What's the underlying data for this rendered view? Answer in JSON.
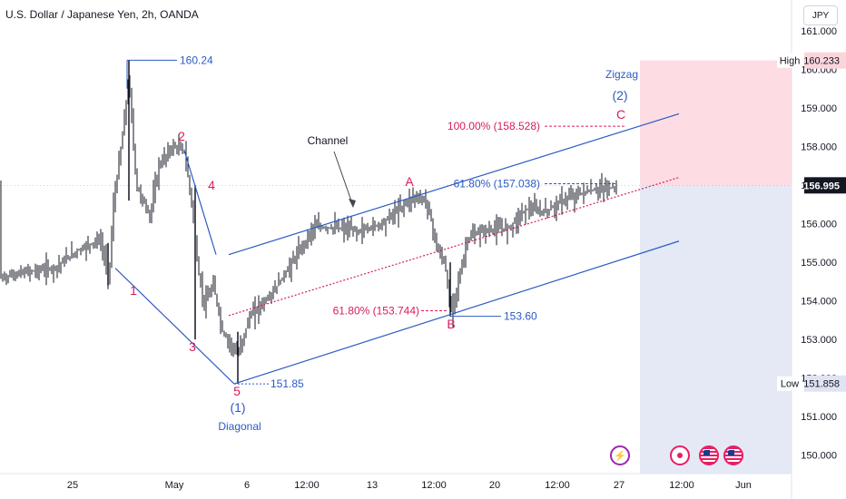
{
  "header": {
    "title": "U.S. Dollar / Japanese Yen, 2h, OANDA",
    "currency_button": "JPY"
  },
  "colors": {
    "blue": "#2c5bc4",
    "magenta": "#d81b60",
    "target_zone": "#fcd5dc",
    "stop_zone": "#dfe3f3",
    "candle": "#131722"
  },
  "events": [
    "lightning-icon",
    "economic-event-icon",
    "us-flag-icon",
    "us-flag-icon"
  ],
  "chart_data": {
    "type": "candlestick",
    "symbol": "USDJPY",
    "ylim": [
      149.5,
      161.4
    ],
    "x_tick_labels": [
      "25",
      "May",
      "6",
      "12:00",
      "13",
      "12:00",
      "20",
      "12:00",
      "27",
      "12:00",
      "Jun"
    ],
    "y_tick_labels": [
      "161.000",
      "160.000",
      "159.000",
      "158.000",
      "157.000",
      "156.000",
      "155.000",
      "154.000",
      "153.000",
      "152.000",
      "151.000",
      "150.000"
    ],
    "last_price": "156.995",
    "high_label": "High",
    "high_value": "160.233",
    "low_label": "Low",
    "low_value": "151.858",
    "price_path": [
      [
        0,
        154.6
      ],
      [
        30,
        154.75
      ],
      [
        60,
        154.85
      ],
      [
        85,
        155.3
      ],
      [
        110,
        155.6
      ],
      [
        120,
        154.6
      ],
      [
        125,
        156.5
      ],
      [
        135,
        158.3
      ],
      [
        142,
        159.8
      ],
      [
        150,
        157.0
      ],
      [
        165,
        156.2
      ],
      [
        175,
        157.5
      ],
      [
        190,
        158.0
      ],
      [
        203,
        157.9
      ],
      [
        213,
        156.2
      ],
      [
        218,
        154.8
      ],
      [
        225,
        153.9
      ],
      [
        235,
        154.4
      ],
      [
        245,
        153.2
      ],
      [
        262,
        152.6
      ],
      [
        275,
        153.6
      ],
      [
        300,
        154.2
      ],
      [
        330,
        155.3
      ],
      [
        345,
        155.9
      ],
      [
        370,
        155.9
      ],
      [
        395,
        155.8
      ],
      [
        420,
        156.0
      ],
      [
        440,
        156.4
      ],
      [
        455,
        156.7
      ],
      [
        470,
        156.6
      ],
      [
        482,
        155.3
      ],
      [
        490,
        155.0
      ],
      [
        496,
        153.7
      ],
      [
        505,
        154.5
      ],
      [
        515,
        155.6
      ],
      [
        530,
        155.8
      ],
      [
        560,
        155.9
      ],
      [
        580,
        156.4
      ],
      [
        600,
        156.3
      ],
      [
        620,
        156.6
      ],
      [
        640,
        156.8
      ],
      [
        660,
        156.9
      ],
      [
        680,
        156.95
      ]
    ],
    "spikes": [
      [
        142,
        160.24,
        156.6
      ],
      [
        119,
        155.5,
        154.4
      ],
      [
        215,
        157.0,
        153.0
      ],
      [
        262,
        153.2,
        151.85
      ],
      [
        496,
        155.0,
        153.6
      ]
    ],
    "wave_labels": {
      "w1": "1",
      "w2": "2",
      "w3": "3",
      "w4": "4",
      "w5": "5",
      "wave1_degree": "(1)",
      "diagonal": "Diagonal",
      "A": "A",
      "B": "B",
      "C": "C",
      "wave2_degree": "(2)",
      "zigzag": "Zigzag",
      "channel": "Channel"
    },
    "price_annotations": {
      "high": "160.24",
      "low": "151.85",
      "b_low": "153.60",
      "fib_618_retracement": "61.80% (153.744)",
      "fib_618_extension": "61.80% (157.038)",
      "fib_100_extension": "100.00% (158.528)"
    }
  }
}
